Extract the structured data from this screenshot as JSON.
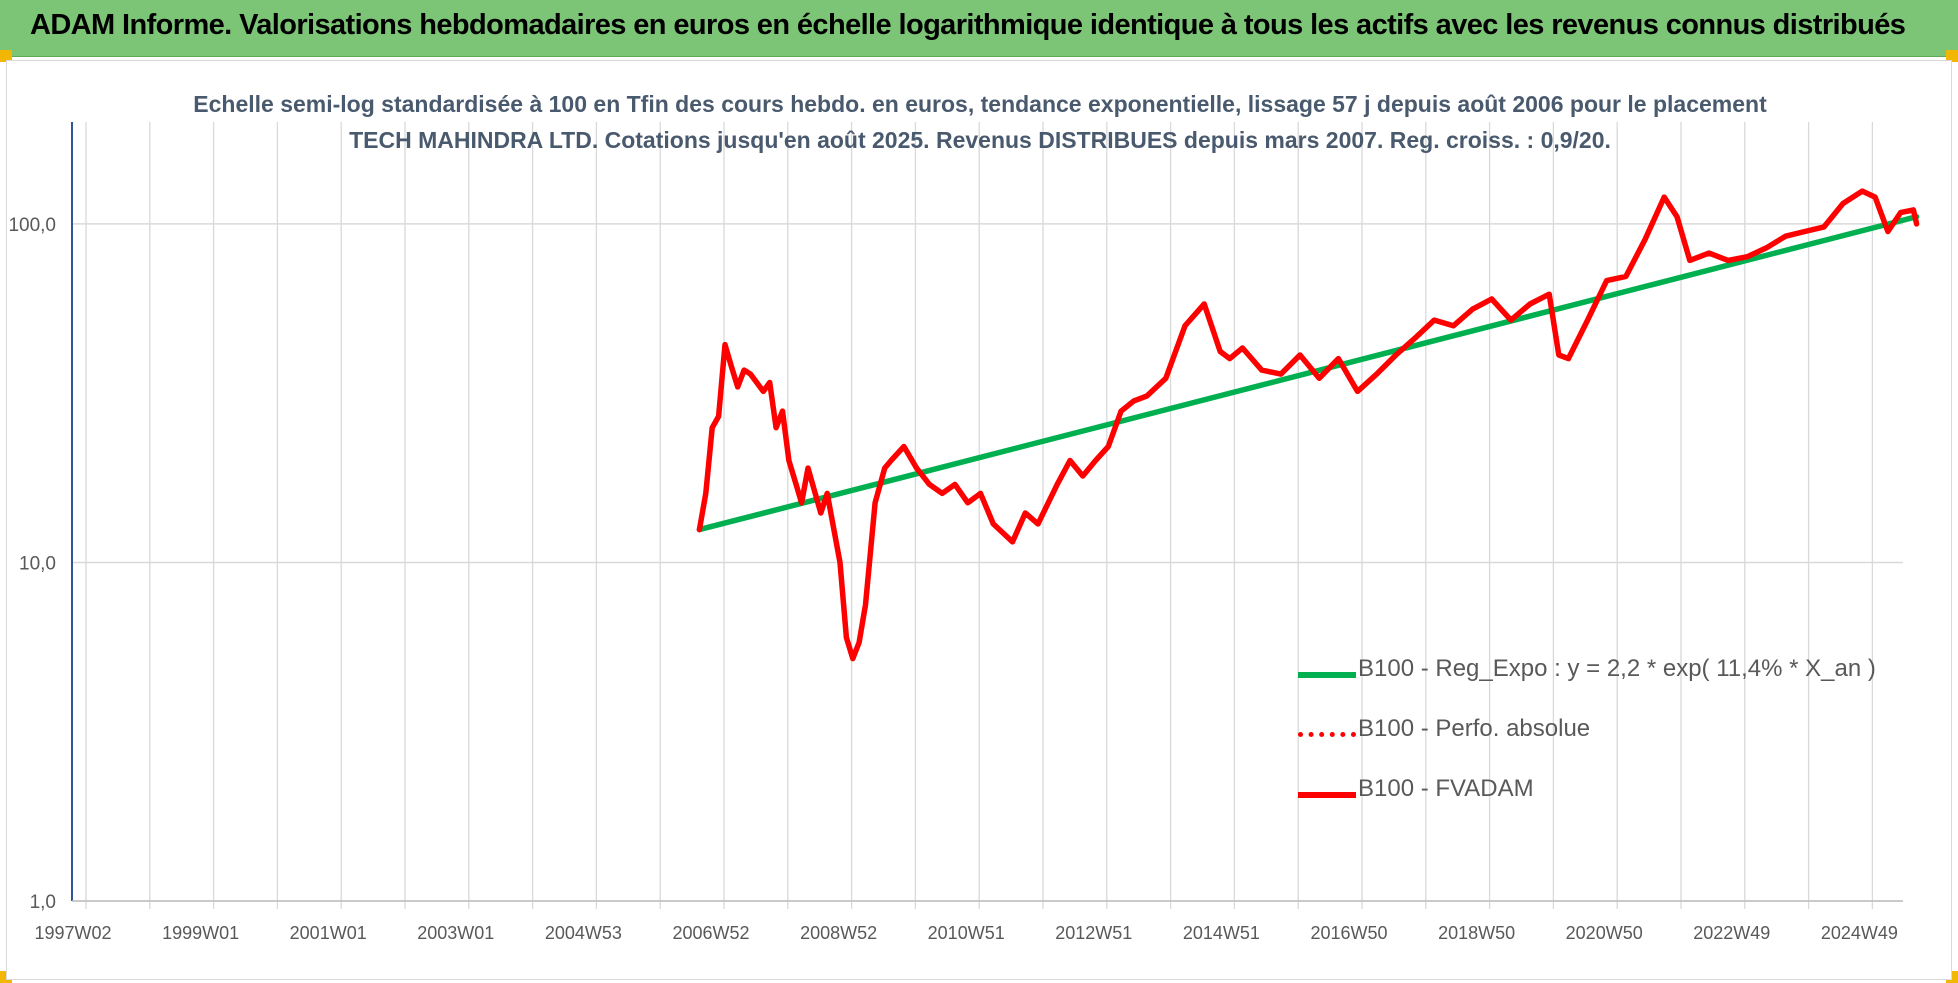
{
  "banner": {
    "title": "ADAM Informe. Valorisations hebdomadaires en euros en échelle logarithmique identique à tous les actifs avec les revenus connus distribués"
  },
  "chart_data": {
    "type": "line",
    "title": "Echelle semi-log standardisée à 100 en Tfin des cours hebdo. en euros, tendance exponentielle, lissage 57 j depuis août 2006 pour le placement TECH MAHINDRA LTD. Cotations jusqu'en août 2025. Revenus DISTRIBUES depuis mars 2007. Reg. croiss. : 0,9/20.",
    "y_scale": "log",
    "ylim": [
      1,
      200
    ],
    "y_ticks": [
      "1,0",
      "10,0",
      "100,0"
    ],
    "x_ticks": [
      "1997W02",
      "1999W01",
      "2001W01",
      "2003W01",
      "2004W53",
      "2006W52",
      "2008W52",
      "2010W51",
      "2012W51",
      "2014W51",
      "2016W50",
      "2018W50",
      "2020W50",
      "2022W49",
      "2024W49"
    ],
    "xlim": [
      1997.0,
      2025.7
    ],
    "grid": true,
    "legend_position": "bottom-right",
    "series": [
      {
        "name": "B100 - Reg_Expo : y = 2,2 * exp( 11,4% *  X_an )",
        "color": "#00b050",
        "style": "solid",
        "x": [
          2006.6,
          2025.65
        ],
        "y": [
          12.5,
          105
        ]
      },
      {
        "name": "B100 - Perfo. absolue",
        "color": "#ff0000",
        "style": "dotted",
        "x": [],
        "y": []
      },
      {
        "name": "B100 - FVADAM",
        "color": "#ff0000",
        "style": "solid",
        "x": [
          2006.6,
          2006.7,
          2006.8,
          2006.9,
          2007.0,
          2007.1,
          2007.2,
          2007.3,
          2007.4,
          2007.6,
          2007.7,
          2007.8,
          2007.9,
          2008.0,
          2008.2,
          2008.3,
          2008.5,
          2008.6,
          2008.8,
          2008.9,
          2009.0,
          2009.1,
          2009.2,
          2009.35,
          2009.5,
          2009.6,
          2009.8,
          2010.0,
          2010.2,
          2010.4,
          2010.6,
          2010.8,
          2011.0,
          2011.2,
          2011.5,
          2011.7,
          2011.9,
          2012.2,
          2012.4,
          2012.6,
          2012.8,
          2013.0,
          2013.2,
          2013.4,
          2013.6,
          2013.9,
          2014.2,
          2014.5,
          2014.75,
          2014.9,
          2015.1,
          2015.4,
          2015.7,
          2016.0,
          2016.3,
          2016.6,
          2016.9,
          2017.2,
          2017.5,
          2017.8,
          2018.1,
          2018.4,
          2018.7,
          2019.0,
          2019.3,
          2019.6,
          2019.9,
          2020.05,
          2020.2,
          2020.5,
          2020.8,
          2021.1,
          2021.4,
          2021.7,
          2021.9,
          2022.1,
          2022.4,
          2022.7,
          2023.0,
          2023.3,
          2023.6,
          2023.9,
          2024.2,
          2024.5,
          2024.8,
          2025.0,
          2025.2,
          2025.4,
          2025.6,
          2025.65
        ],
        "y": [
          12.5,
          16,
          25,
          27,
          44,
          38,
          33,
          37,
          36,
          32,
          34,
          25,
          28,
          20,
          15,
          19,
          14,
          16,
          10,
          6,
          5.2,
          5.8,
          7.5,
          15,
          19,
          20,
          22,
          19,
          17,
          16,
          17,
          15,
          16,
          13,
          11.5,
          14,
          13,
          17,
          20,
          18,
          20,
          22,
          28,
          30,
          31,
          35,
          50,
          58,
          42,
          40,
          43,
          37,
          36,
          41,
          35,
          40,
          32,
          36,
          41,
          46,
          52,
          50,
          56,
          60,
          52,
          58,
          62,
          41,
          40,
          52,
          68,
          70,
          90,
          120,
          105,
          78,
          82,
          78,
          80,
          85,
          92,
          95,
          98,
          115,
          125,
          120,
          95,
          108,
          110,
          100
        ]
      }
    ]
  },
  "colors": {
    "banner_bg": "#7cc576",
    "corner_marks": "#f2b705",
    "grid": "#d9d9d9",
    "axis_text": "#595959",
    "title_text": "#4a5a6e"
  }
}
